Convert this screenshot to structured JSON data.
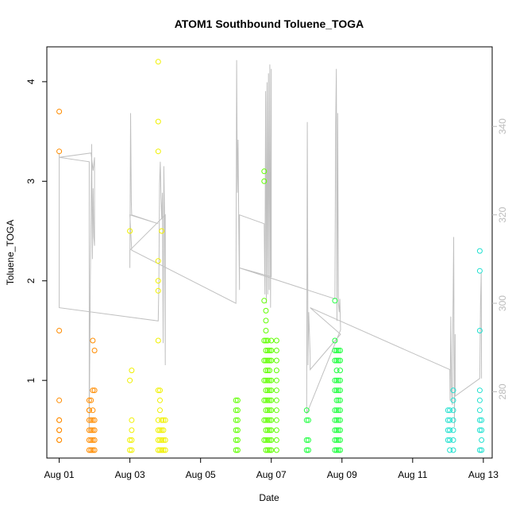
{
  "chart_data": {
    "type": "scatter",
    "title": "ATOM1 Southbound Toluene_TOGA",
    "xlabel": "Date",
    "ylabel": "Toluene_TOGA",
    "x_ticks": [
      "Aug 01",
      "Aug 03",
      "Aug 05",
      "Aug 07",
      "Aug 09",
      "Aug 11",
      "Aug 13"
    ],
    "x_tick_days": [
      1,
      3,
      5,
      7,
      9,
      11,
      13
    ],
    "xlim_days": [
      0.65,
      13.25
    ],
    "ylim": [
      0.22,
      4.35
    ],
    "y_ticks": [
      1,
      2,
      3,
      4
    ],
    "y2_ticks": [
      280,
      300,
      320,
      340
    ],
    "y2lim": [
      265,
      358
    ],
    "grid": false,
    "legend": "none",
    "point_colors": [
      "#ff8c00",
      "#ffb400",
      "#f0f000",
      "#c8ff00",
      "#50ff00",
      "#20ff40",
      "#30ffa0",
      "#20e0d0"
    ],
    "series": [
      {
        "color": "#ff8c00",
        "points": [
          [
            1.0,
            3.7
          ],
          [
            1.0,
            3.3
          ],
          [
            1.0,
            1.5
          ],
          [
            1.0,
            0.8
          ],
          [
            1.0,
            0.6
          ],
          [
            1.0,
            0.6
          ],
          [
            1.0,
            0.5
          ],
          [
            1.0,
            0.5
          ],
          [
            1.0,
            0.4
          ],
          [
            1.0,
            0.4
          ],
          [
            1.85,
            0.8
          ],
          [
            1.85,
            0.7
          ],
          [
            1.85,
            0.7
          ],
          [
            1.85,
            0.6
          ],
          [
            1.85,
            0.5
          ],
          [
            1.85,
            0.4
          ],
          [
            1.85,
            0.3
          ],
          [
            1.9,
            0.8
          ],
          [
            1.9,
            0.6
          ],
          [
            1.9,
            0.5
          ],
          [
            1.9,
            0.4
          ],
          [
            1.9,
            0.3
          ],
          [
            1.95,
            1.4
          ],
          [
            1.95,
            0.9
          ],
          [
            1.95,
            0.7
          ],
          [
            1.95,
            0.6
          ],
          [
            1.95,
            0.5
          ],
          [
            1.95,
            0.4
          ],
          [
            1.95,
            0.3
          ],
          [
            2.0,
            1.3
          ],
          [
            2.0,
            0.9
          ],
          [
            2.0,
            0.6
          ],
          [
            2.0,
            0.5
          ],
          [
            2.0,
            0.4
          ],
          [
            2.0,
            0.3
          ]
        ]
      },
      {
        "color": "#f0f000",
        "points": [
          [
            3.0,
            2.5
          ],
          [
            3.0,
            1.0
          ],
          [
            3.0,
            0.4
          ],
          [
            3.0,
            0.3
          ],
          [
            3.05,
            1.1
          ],
          [
            3.05,
            0.6
          ],
          [
            3.05,
            0.5
          ],
          [
            3.05,
            0.4
          ],
          [
            3.05,
            0.3
          ],
          [
            3.8,
            4.2
          ],
          [
            3.8,
            3.6
          ],
          [
            3.8,
            3.3
          ],
          [
            3.8,
            2.2
          ],
          [
            3.8,
            2.0
          ],
          [
            3.8,
            1.9
          ],
          [
            3.8,
            1.4
          ],
          [
            3.8,
            0.9
          ],
          [
            3.8,
            0.6
          ],
          [
            3.8,
            0.5
          ],
          [
            3.8,
            0.4
          ],
          [
            3.8,
            0.3
          ],
          [
            3.85,
            0.9
          ],
          [
            3.85,
            0.8
          ],
          [
            3.85,
            0.7
          ],
          [
            3.85,
            0.5
          ],
          [
            3.85,
            0.4
          ],
          [
            3.85,
            0.3
          ],
          [
            3.9,
            2.5
          ],
          [
            3.9,
            0.6
          ],
          [
            3.9,
            0.5
          ],
          [
            3.9,
            0.4
          ],
          [
            3.9,
            0.3
          ],
          [
            3.95,
            0.6
          ],
          [
            3.95,
            0.5
          ],
          [
            3.95,
            0.4
          ],
          [
            3.95,
            0.3
          ],
          [
            4.0,
            0.6
          ],
          [
            4.0,
            0.4
          ],
          [
            4.0,
            0.3
          ]
        ]
      },
      {
        "color": "#60ff00",
        "points": [
          [
            6.0,
            0.8
          ],
          [
            6.0,
            0.7
          ],
          [
            6.0,
            0.6
          ],
          [
            6.0,
            0.5
          ],
          [
            6.0,
            0.4
          ],
          [
            6.0,
            0.3
          ],
          [
            6.05,
            0.8
          ],
          [
            6.05,
            0.7
          ],
          [
            6.05,
            0.6
          ],
          [
            6.05,
            0.5
          ],
          [
            6.05,
            0.4
          ],
          [
            6.05,
            0.3
          ],
          [
            6.8,
            3.1
          ],
          [
            6.8,
            3.0
          ],
          [
            6.8,
            1.8
          ],
          [
            6.8,
            1.4
          ],
          [
            6.8,
            1.2
          ],
          [
            6.8,
            1.0
          ],
          [
            6.8,
            0.8
          ],
          [
            6.8,
            0.6
          ],
          [
            6.8,
            0.4
          ],
          [
            6.85,
            1.7
          ],
          [
            6.85,
            1.6
          ],
          [
            6.85,
            1.5
          ],
          [
            6.85,
            1.4
          ],
          [
            6.85,
            1.3
          ],
          [
            6.85,
            1.2
          ],
          [
            6.85,
            1.1
          ],
          [
            6.85,
            1.0
          ],
          [
            6.85,
            0.9
          ],
          [
            6.85,
            0.8
          ],
          [
            6.85,
            0.7
          ],
          [
            6.85,
            0.6
          ],
          [
            6.85,
            0.5
          ],
          [
            6.85,
            0.4
          ],
          [
            6.85,
            0.3
          ],
          [
            6.9,
            1.4
          ],
          [
            6.9,
            1.3
          ],
          [
            6.9,
            1.2
          ],
          [
            6.9,
            1.1
          ],
          [
            6.9,
            1.0
          ],
          [
            6.9,
            0.9
          ],
          [
            6.9,
            0.8
          ],
          [
            6.9,
            0.7
          ],
          [
            6.9,
            0.6
          ],
          [
            6.9,
            0.5
          ],
          [
            6.9,
            0.4
          ],
          [
            6.9,
            0.3
          ],
          [
            6.95,
            1.3
          ],
          [
            6.95,
            1.2
          ],
          [
            6.95,
            1.1
          ],
          [
            6.95,
            1.0
          ],
          [
            6.95,
            0.9
          ],
          [
            6.95,
            0.8
          ],
          [
            6.95,
            0.7
          ],
          [
            6.95,
            0.6
          ],
          [
            6.95,
            0.5
          ],
          [
            6.95,
            0.4
          ],
          [
            6.95,
            0.3
          ],
          [
            7.0,
            1.4
          ],
          [
            7.0,
            1.3
          ],
          [
            7.0,
            1.2
          ],
          [
            7.0,
            1.0
          ],
          [
            7.0,
            0.9
          ],
          [
            7.0,
            0.8
          ],
          [
            7.0,
            0.7
          ],
          [
            7.0,
            0.6
          ],
          [
            7.0,
            0.5
          ],
          [
            7.0,
            0.4
          ],
          [
            7.0,
            0.3
          ],
          [
            7.15,
            1.4
          ],
          [
            7.15,
            1.3
          ],
          [
            7.15,
            1.2
          ],
          [
            7.15,
            1.1
          ],
          [
            7.15,
            1.0
          ],
          [
            7.15,
            0.9
          ],
          [
            7.15,
            0.8
          ],
          [
            7.15,
            0.7
          ],
          [
            7.15,
            0.6
          ],
          [
            7.15,
            0.5
          ],
          [
            7.15,
            0.4
          ],
          [
            7.15,
            0.3
          ]
        ]
      },
      {
        "color": "#20ff40",
        "points": [
          [
            8.0,
            0.7
          ],
          [
            8.0,
            0.6
          ],
          [
            8.0,
            0.4
          ],
          [
            8.0,
            0.3
          ],
          [
            8.05,
            0.6
          ],
          [
            8.05,
            0.4
          ],
          [
            8.05,
            0.3
          ],
          [
            8.8,
            1.8
          ],
          [
            8.8,
            1.4
          ],
          [
            8.8,
            1.3
          ],
          [
            8.8,
            1.2
          ],
          [
            8.8,
            1.0
          ],
          [
            8.8,
            0.9
          ],
          [
            8.8,
            0.7
          ],
          [
            8.8,
            0.6
          ],
          [
            8.8,
            0.5
          ],
          [
            8.8,
            0.4
          ],
          [
            8.8,
            0.3
          ],
          [
            8.85,
            1.3
          ],
          [
            8.85,
            1.2
          ],
          [
            8.85,
            1.1
          ],
          [
            8.85,
            1.0
          ],
          [
            8.85,
            0.9
          ],
          [
            8.85,
            0.8
          ],
          [
            8.85,
            0.7
          ],
          [
            8.85,
            0.6
          ],
          [
            8.85,
            0.5
          ],
          [
            8.85,
            0.4
          ],
          [
            8.85,
            0.3
          ],
          [
            8.9,
            1.3
          ],
          [
            8.9,
            1.2
          ],
          [
            8.9,
            1.0
          ],
          [
            8.9,
            0.9
          ],
          [
            8.9,
            0.8
          ],
          [
            8.9,
            0.7
          ],
          [
            8.9,
            0.6
          ],
          [
            8.9,
            0.5
          ],
          [
            8.9,
            0.4
          ],
          [
            8.9,
            0.3
          ],
          [
            8.95,
            1.3
          ],
          [
            8.95,
            1.2
          ],
          [
            8.95,
            1.1
          ],
          [
            8.95,
            1.0
          ],
          [
            8.95,
            0.9
          ],
          [
            8.95,
            0.8
          ],
          [
            8.95,
            0.7
          ],
          [
            8.95,
            0.6
          ],
          [
            8.95,
            0.5
          ],
          [
            8.95,
            0.4
          ],
          [
            8.95,
            0.3
          ]
        ]
      },
      {
        "color": "#20e0d0",
        "points": [
          [
            12.0,
            0.7
          ],
          [
            12.0,
            0.6
          ],
          [
            12.0,
            0.5
          ],
          [
            12.0,
            0.4
          ],
          [
            12.05,
            0.7
          ],
          [
            12.05,
            0.6
          ],
          [
            12.05,
            0.5
          ],
          [
            12.05,
            0.4
          ],
          [
            12.05,
            0.3
          ],
          [
            12.15,
            0.9
          ],
          [
            12.15,
            0.8
          ],
          [
            12.15,
            0.7
          ],
          [
            12.15,
            0.6
          ],
          [
            12.15,
            0.5
          ],
          [
            12.15,
            0.4
          ],
          [
            12.15,
            0.3
          ],
          [
            12.9,
            2.3
          ],
          [
            12.9,
            2.1
          ],
          [
            12.9,
            1.5
          ],
          [
            12.9,
            0.9
          ],
          [
            12.9,
            0.8
          ],
          [
            12.9,
            0.7
          ],
          [
            12.9,
            0.6
          ],
          [
            12.9,
            0.5
          ],
          [
            12.9,
            0.3
          ],
          [
            12.95,
            0.6
          ],
          [
            12.95,
            0.5
          ],
          [
            12.95,
            0.4
          ],
          [
            12.95,
            0.3
          ]
        ]
      }
    ],
    "altitude_line": {
      "color": "#c0c0c0",
      "points": [
        [
          1.0,
          321
        ],
        [
          1.0,
          334
        ],
        [
          1.0,
          333
        ],
        [
          1.85,
          332
        ],
        [
          1.85,
          332
        ],
        [
          1.85,
          271
        ],
        [
          1.88,
          306
        ],
        [
          1.9,
          320
        ],
        [
          1.92,
          336
        ],
        [
          1.94,
          310
        ],
        [
          1.96,
          326
        ],
        [
          1.98,
          315
        ],
        [
          2.0,
          313
        ],
        [
          2.0,
          333
        ],
        [
          1.96,
          330
        ],
        [
          1.9,
          334
        ],
        [
          1.0,
          333
        ],
        [
          1.0,
          299
        ],
        [
          3.8,
          296
        ],
        [
          3.82,
          304
        ],
        [
          3.84,
          327
        ],
        [
          3.86,
          332
        ],
        [
          3.88,
          324
        ],
        [
          3.9,
          319
        ],
        [
          3.92,
          325
        ],
        [
          3.94,
          291
        ],
        [
          3.96,
          331
        ],
        [
          3.98,
          320
        ],
        [
          4.0,
          286
        ],
        [
          4.0,
          320
        ],
        [
          3.0,
          312
        ],
        [
          3.0,
          308
        ],
        [
          3.02,
          343
        ],
        [
          3.04,
          323
        ],
        [
          3.05,
          320
        ],
        [
          3.8,
          318
        ],
        [
          3.0,
          320
        ],
        [
          3.05,
          312
        ],
        [
          6.0,
          300
        ],
        [
          6.02,
          355
        ],
        [
          6.04,
          325
        ],
        [
          6.06,
          337
        ],
        [
          6.08,
          317
        ],
        [
          6.1,
          303
        ],
        [
          6.1,
          320
        ],
        [
          6.8,
          318
        ],
        [
          6.82,
          302
        ],
        [
          6.84,
          348
        ],
        [
          6.86,
          300
        ],
        [
          6.88,
          350
        ],
        [
          6.9,
          302
        ],
        [
          6.92,
          352
        ],
        [
          6.94,
          303
        ],
        [
          6.96,
          354
        ],
        [
          6.98,
          299
        ],
        [
          7.0,
          353
        ],
        [
          7.0,
          306
        ],
        [
          6.1,
          308
        ],
        [
          8.8,
          301
        ],
        [
          8.82,
          340
        ],
        [
          8.84,
          353
        ],
        [
          8.86,
          296
        ],
        [
          8.88,
          343
        ],
        [
          8.9,
          300
        ],
        [
          8.92,
          298
        ],
        [
          8.94,
          301
        ],
        [
          8.96,
          294
        ],
        [
          8.0,
          275
        ],
        [
          8.02,
          341
        ],
        [
          8.04,
          286
        ],
        [
          8.06,
          298
        ],
        [
          8.1,
          288
        ],
        [
          8.1,
          285
        ],
        [
          8.96,
          293
        ],
        [
          8.1,
          299
        ],
        [
          12.05,
          285
        ],
        [
          12.06,
          278
        ],
        [
          12.08,
          297
        ],
        [
          12.1,
          280
        ],
        [
          12.12,
          277
        ],
        [
          12.14,
          297
        ],
        [
          12.16,
          315
        ],
        [
          12.18,
          272
        ],
        [
          12.2,
          293
        ],
        [
          12.2,
          279
        ],
        [
          12.9,
          283
        ],
        [
          12.92,
          300
        ],
        [
          12.94,
          307
        ],
        [
          12.95,
          283
        ]
      ]
    }
  }
}
